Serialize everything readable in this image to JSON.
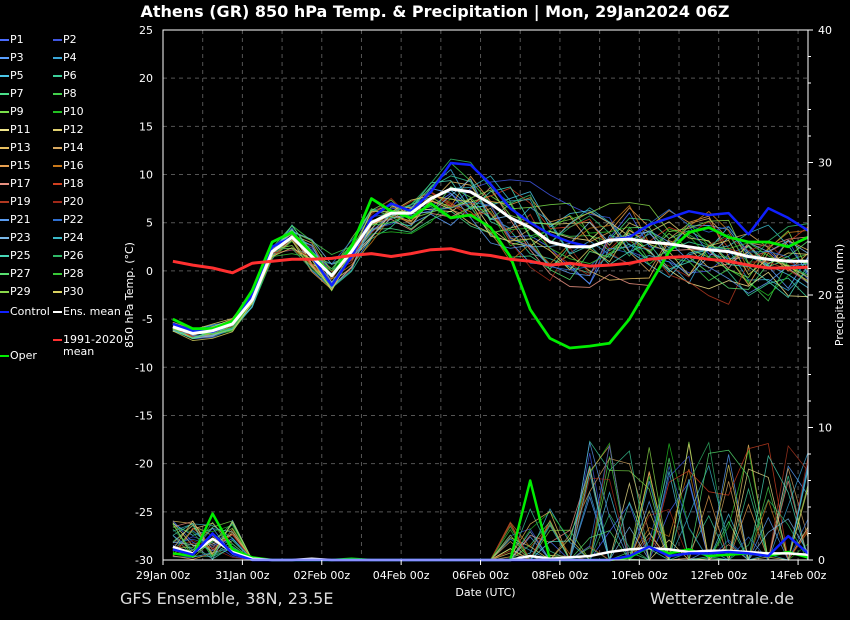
{
  "title": "Athens  (GR)  850 hPa Temp. & Precipitation | Mon, 29Jan2024 06Z",
  "footer_left": "GFS Ensemble, 38N, 23.5E",
  "footer_right": "Wetterzentrale.de",
  "legend": [
    {
      "label": "P1",
      "color": "#4a6cff"
    },
    {
      "label": "P2",
      "color": "#3f56e0"
    },
    {
      "label": "P3",
      "color": "#5aa0ff"
    },
    {
      "label": "P4",
      "color": "#3aa6d8"
    },
    {
      "label": "P5",
      "color": "#4bc7e8"
    },
    {
      "label": "P6",
      "color": "#3ccf9a"
    },
    {
      "label": "P7",
      "color": "#4ae08a"
    },
    {
      "label": "P8",
      "color": "#42d04c"
    },
    {
      "label": "P9",
      "color": "#7ae04a"
    },
    {
      "label": "P10",
      "color": "#22c022"
    },
    {
      "label": "P11",
      "color": "#f0e68c"
    },
    {
      "label": "P12",
      "color": "#e0d070"
    },
    {
      "label": "P13",
      "color": "#e8c060"
    },
    {
      "label": "P14",
      "color": "#d8a860"
    },
    {
      "label": "P15",
      "color": "#e8a050"
    },
    {
      "label": "P16",
      "color": "#c8781a"
    },
    {
      "label": "P17",
      "color": "#e89080"
    },
    {
      "label": "P18",
      "color": "#d04020"
    },
    {
      "label": "P19",
      "color": "#b03820"
    },
    {
      "label": "P20",
      "color": "#a02818"
    },
    {
      "label": "P21",
      "color": "#5a9cf0"
    },
    {
      "label": "P22",
      "color": "#2f6fd0"
    },
    {
      "label": "P23",
      "color": "#7ab8e8"
    },
    {
      "label": "P24",
      "color": "#3ab8c8"
    },
    {
      "label": "P25",
      "color": "#48d8b8"
    },
    {
      "label": "P26",
      "color": "#30b868"
    },
    {
      "label": "P27",
      "color": "#58e070"
    },
    {
      "label": "P28",
      "color": "#38c838"
    },
    {
      "label": "P29",
      "color": "#8ad84a"
    },
    {
      "label": "P30",
      "color": "#d8d060"
    },
    {
      "label": "Control",
      "color": "#1020ff"
    },
    {
      "label": "Ens. mean",
      "color": "#ffffff"
    },
    {
      "label": "1991-2020 mean",
      "color": "#ff3030"
    },
    {
      "label": "Oper",
      "color": "#00ee00"
    }
  ],
  "chart_data": {
    "type": "line",
    "xlabel": "Date (UTC)",
    "ylabel": "850 hPa Temp. (°C)",
    "y2label": "Precipitation (mm)",
    "ylim": [
      -30,
      25
    ],
    "y2lim": [
      0,
      40
    ],
    "yticks": [
      25,
      20,
      15,
      10,
      5,
      0,
      -5,
      -10,
      -15,
      -20,
      -25,
      -30
    ],
    "y2ticks": [
      40,
      30,
      20,
      10,
      0
    ],
    "x_ticks": [
      "29Jan 00z",
      "31Jan 00z",
      "02Feb 00z",
      "04Feb 00z",
      "06Feb 00z",
      "08Feb 00z",
      "10Feb 00z",
      "12Feb 00z",
      "14Feb 00z"
    ],
    "grid": true,
    "x_hours": [
      6,
      18,
      30,
      42,
      54,
      66,
      78,
      90,
      102,
      114,
      126,
      138,
      150,
      162,
      174,
      186,
      198,
      210,
      222,
      234,
      246,
      258,
      270,
      282,
      294,
      306,
      318,
      330,
      342,
      354,
      366,
      378,
      390
    ],
    "series": [
      {
        "name": "Control",
        "color": "#1020ff",
        "values": [
          -5.5,
          -6.2,
          -6.3,
          -5.5,
          -2.5,
          2.5,
          3.5,
          1.5,
          -1.5,
          1.5,
          5.5,
          7.0,
          6.2,
          8.2,
          11.2,
          11.0,
          9.0,
          6.5,
          5.0,
          3.8,
          3.0,
          2.5,
          3.2,
          3.5,
          4.8,
          5.5,
          6.2,
          5.8,
          6.0,
          3.8,
          6.5,
          5.5,
          4.2
        ]
      },
      {
        "name": "Oper",
        "color": "#00ee00",
        "values": [
          -5.0,
          -6.0,
          -6.0,
          -5.2,
          -2.0,
          3.0,
          4.0,
          1.8,
          -0.5,
          2.5,
          7.5,
          6.2,
          5.5,
          7.0,
          5.5,
          5.8,
          4.5,
          1.5,
          -4.0,
          -7.0,
          -8.0,
          -7.8,
          -7.5,
          -5.0,
          -1.5,
          2.0,
          4.0,
          4.5,
          3.5,
          3.0,
          3.0,
          2.5,
          3.5
        ]
      },
      {
        "name": "Ens. mean",
        "color": "#ffffff",
        "values": [
          -5.8,
          -6.5,
          -6.2,
          -5.5,
          -3.0,
          2.0,
          3.5,
          1.5,
          -0.5,
          2.0,
          5.0,
          6.0,
          6.0,
          7.5,
          8.5,
          8.2,
          7.0,
          5.5,
          4.5,
          3.0,
          2.5,
          2.5,
          3.2,
          3.3,
          3.0,
          2.8,
          2.5,
          2.2,
          2.0,
          1.5,
          1.2,
          1.0,
          1.0
        ]
      },
      {
        "name": "1991-2020 mean",
        "color": "#ff3030",
        "values": [
          1.0,
          0.6,
          0.3,
          -0.2,
          0.8,
          1.0,
          1.2,
          1.2,
          1.3,
          1.6,
          1.8,
          1.5,
          1.8,
          2.2,
          2.3,
          1.8,
          1.6,
          1.2,
          1.0,
          0.6,
          0.8,
          0.5,
          0.6,
          0.8,
          1.2,
          1.4,
          1.5,
          1.2,
          1.0,
          0.6,
          0.3,
          0.3,
          0.4
        ]
      }
    ],
    "precip_series": [
      {
        "name": "Oper",
        "color": "#00ee00",
        "values": [
          0.5,
          0.3,
          3.5,
          0.8,
          0.2,
          0,
          0,
          0,
          0,
          0.1,
          0,
          0,
          0,
          0,
          0,
          0,
          0,
          0,
          6.0,
          0,
          0,
          0,
          0,
          0.2,
          1.0,
          0.5,
          0.8,
          0.3,
          0.4,
          0.5,
          0.3,
          0.6,
          0.2
        ]
      },
      {
        "name": "Ens. mean",
        "color": "#ffffff",
        "values": [
          1.0,
          0.5,
          1.6,
          0.6,
          0.1,
          0,
          0,
          0.1,
          0,
          0,
          0,
          0,
          0,
          0,
          0,
          0,
          0,
          0,
          0.3,
          0.1,
          0.2,
          0.3,
          0.6,
          0.8,
          0.9,
          0.8,
          0.6,
          0.7,
          0.7,
          0.6,
          0.5,
          0.5,
          0.4
        ]
      },
      {
        "name": "Control",
        "color": "#1020ff",
        "values": [
          0.8,
          0.4,
          2.0,
          0.5,
          0,
          0,
          0,
          0,
          0,
          0,
          0,
          0,
          0,
          0,
          0,
          0,
          0,
          0,
          0,
          0,
          0,
          0,
          0,
          0.3,
          1.0,
          0.3,
          0.5,
          0.5,
          0.6,
          0.5,
          0.3,
          1.8,
          0.5
        ]
      }
    ]
  }
}
